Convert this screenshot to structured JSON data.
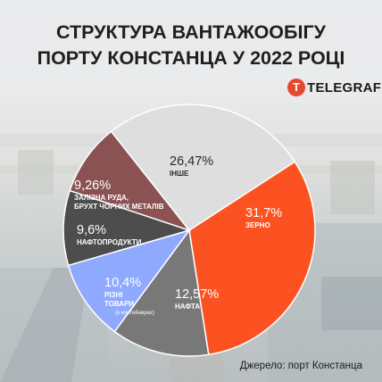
{
  "header": {
    "title_line1": "СТРУКТУРА ВАНТАЖООБІГУ",
    "title_line2": "ПОРТУ КОНСТАНЦА У 2022 РОЦІ"
  },
  "brand": {
    "mark": "T",
    "name": "TELEGRAF",
    "icon": "telegraf-logo-icon"
  },
  "source": "Джерело: порт Констанца",
  "chart_data": {
    "type": "pie",
    "title": "СТРУКТУРА ВАНТАЖООБІГУ ПОРТУ КОНСТАНЦА У 2022 РОЦІ",
    "unit": "%",
    "start_angle_deg": 57,
    "slices": [
      {
        "label": "ЗЕРНО",
        "value": 31.7,
        "display": "31,7%",
        "color": "#fc5221",
        "text_color": "#ffffff",
        "sub": []
      },
      {
        "label": "НАФТА",
        "value": 12.57,
        "display": "12,57%",
        "color": "#787878",
        "text_color": "#ffffff",
        "sub": []
      },
      {
        "label": "РІЗНІ ТОВАРИ",
        "value": 10.4,
        "display": "10,4%",
        "color": "#8fa9ff",
        "text_color": "#ffffff",
        "sub": [
          "РІЗНІ",
          "ТОВАРИ"
        ],
        "note": "(в контейнерах)"
      },
      {
        "label": "НАФТОПРОДУКТИ",
        "value": 9.6,
        "display": "9,6%",
        "color": "#4d4d4d",
        "text_color": "#ffffff",
        "sub": []
      },
      {
        "label": "ЗАЛІЗНА РУДА, БРУХТ ЧОРНИХ МЕТАЛІВ",
        "value": 9.26,
        "display": "9,26%",
        "color": "#8a5252",
        "text_color": "#ffffff",
        "sub": [
          "ЗАЛІЗНА РУДА,",
          "БРУХТ ЧОРНИХ МЕТАЛІВ"
        ]
      },
      {
        "label": "ІНШЕ",
        "value": 26.47,
        "display": "26,47%",
        "color": "#dedede",
        "text_color": "#2a2a2a",
        "sub": []
      }
    ]
  }
}
